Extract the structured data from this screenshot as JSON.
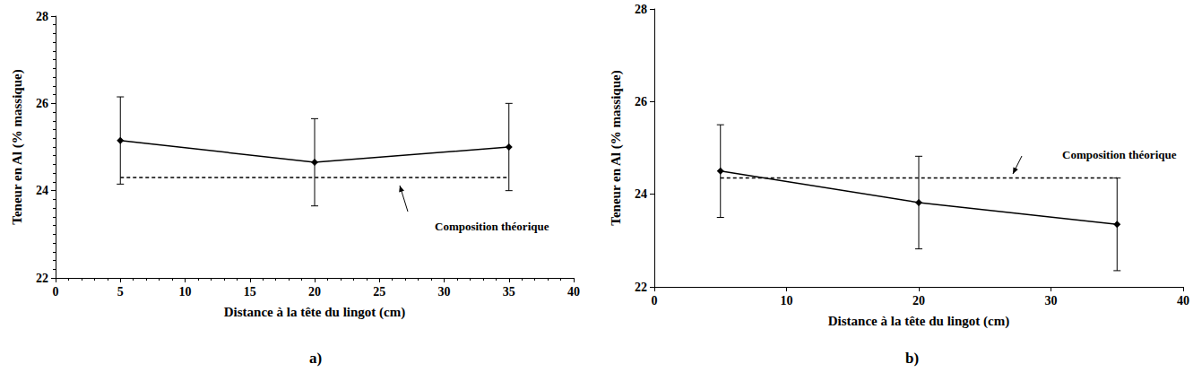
{
  "chart_data": [
    {
      "type": "line",
      "panel_label": "a)",
      "x_label": "Distance à la tête du lingot (cm)",
      "y_label": "Teneur en Al (% massique)",
      "x": [
        5,
        20,
        35
      ],
      "values": [
        25.15,
        24.65,
        25.0
      ],
      "errors": [
        1.0,
        1.0,
        1.0
      ],
      "color": "#000000",
      "marker": "diamond",
      "xlim": [
        0,
        40
      ],
      "xticks": [
        0,
        5,
        10,
        15,
        20,
        25,
        30,
        35,
        40
      ],
      "ylim": [
        22,
        28
      ],
      "yticks": [
        22,
        24,
        26,
        28
      ],
      "grid": false,
      "reference": {
        "label": "Composition théorique",
        "value": 24.3,
        "x": [
          5,
          35
        ],
        "line_style": "dashed"
      }
    },
    {
      "type": "line",
      "panel_label": "b)",
      "x_label": "Distance à la tête du lingot (cm)",
      "y_label": "Teneur en Al (% massique)",
      "x": [
        5,
        20,
        35
      ],
      "values": [
        24.5,
        23.82,
        23.35
      ],
      "errors": [
        1.0,
        1.0,
        1.0
      ],
      "color": "#000000",
      "marker": "diamond",
      "xlim": [
        0,
        40
      ],
      "xticks": [
        0,
        10,
        20,
        30,
        40
      ],
      "ylim": [
        22,
        28
      ],
      "yticks": [
        22,
        24,
        26,
        28
      ],
      "grid": false,
      "reference": {
        "label": "Composition théorique",
        "value": 24.35,
        "x": [
          5,
          35
        ],
        "line_style": "dashed"
      }
    }
  ]
}
